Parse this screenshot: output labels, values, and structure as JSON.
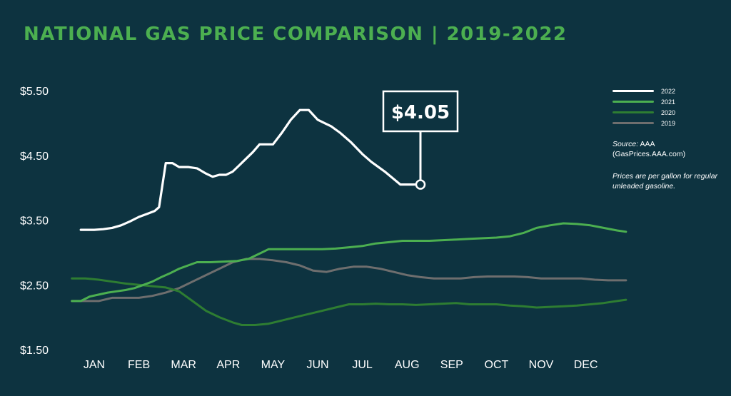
{
  "page": {
    "title": "NATIONAL GAS PRICE COMPARISON  |  2019-2022",
    "background": "#0d3340",
    "title_color": "#4caf50"
  },
  "notes": {
    "source_label": "Source:",
    "source_value": "AAA",
    "source_url": "(GasPrices.AAA.com)",
    "prices_note": "Prices are per gallon for regular unleaded gasoline."
  },
  "chart_data": {
    "type": "line",
    "title": "NATIONAL GAS PRICE COMPARISON  |  2019-2022",
    "categories": [
      "JAN",
      "FEB",
      "MAR",
      "APR",
      "MAY",
      "JUN",
      "JUL",
      "AUG",
      "SEP",
      "OCT",
      "NOV",
      "DEC"
    ],
    "y_ticks": [
      "$1.50",
      "$2.50",
      "$3.50",
      "$4.50",
      "$5.50"
    ],
    "ylim": [
      1.5,
      5.5
    ],
    "grid": false,
    "legend_position": "top-right",
    "annotation": {
      "label": "$4.05",
      "series": "2022",
      "x": 7.3,
      "y": 4.05
    },
    "series": [
      {
        "name": "2022",
        "color": "#ffffff",
        "x": [
          -0.3,
          0,
          0.2,
          0.4,
          0.6,
          0.8,
          1.0,
          1.2,
          1.35,
          1.45,
          1.6,
          1.75,
          1.9,
          2.1,
          2.3,
          2.5,
          2.65,
          2.8,
          2.95,
          3.1,
          3.25,
          3.4,
          3.55,
          3.7,
          3.85,
          4.0,
          4.2,
          4.4,
          4.6,
          4.8,
          5.0,
          5.15,
          5.3,
          5.5,
          5.75,
          6.0,
          6.2,
          6.5,
          6.85,
          7.3
        ],
        "y": [
          3.35,
          3.35,
          3.36,
          3.38,
          3.42,
          3.48,
          3.55,
          3.6,
          3.64,
          3.7,
          4.38,
          4.38,
          4.32,
          4.32,
          4.3,
          4.22,
          4.17,
          4.2,
          4.2,
          4.25,
          4.35,
          4.45,
          4.55,
          4.67,
          4.67,
          4.67,
          4.85,
          5.05,
          5.2,
          5.2,
          5.05,
          5.0,
          4.95,
          4.85,
          4.7,
          4.52,
          4.4,
          4.25,
          4.05,
          4.05
        ]
      },
      {
        "name": "2021",
        "color": "#4caf50",
        "x": [
          -0.5,
          -0.3,
          -0.1,
          0.1,
          0.3,
          0.5,
          0.7,
          0.9,
          1.1,
          1.3,
          1.5,
          1.7,
          1.9,
          2.1,
          2.3,
          2.6,
          2.9,
          3.2,
          3.45,
          3.6,
          3.75,
          3.9,
          4.2,
          4.5,
          4.8,
          5.1,
          5.4,
          5.7,
          6.0,
          6.3,
          6.6,
          6.9,
          7.2,
          7.5,
          7.8,
          8.1,
          8.4,
          8.7,
          9.0,
          9.3,
          9.6,
          9.9,
          10.2,
          10.5,
          10.8,
          11.1,
          11.4,
          11.7,
          11.9
        ],
        "y": [
          2.25,
          2.25,
          2.32,
          2.35,
          2.38,
          2.4,
          2.42,
          2.45,
          2.5,
          2.55,
          2.62,
          2.68,
          2.75,
          2.8,
          2.85,
          2.85,
          2.86,
          2.87,
          2.9,
          2.95,
          3.0,
          3.05,
          3.05,
          3.05,
          3.05,
          3.05,
          3.06,
          3.08,
          3.1,
          3.14,
          3.16,
          3.18,
          3.18,
          3.18,
          3.19,
          3.2,
          3.21,
          3.22,
          3.23,
          3.25,
          3.3,
          3.38,
          3.42,
          3.45,
          3.44,
          3.42,
          3.38,
          3.34,
          3.32
        ]
      },
      {
        "name": "2020",
        "color": "#2e7d32",
        "x": [
          -0.5,
          -0.2,
          0.1,
          0.4,
          0.7,
          1.0,
          1.3,
          1.6,
          1.9,
          2.2,
          2.5,
          2.8,
          3.1,
          3.3,
          3.6,
          3.9,
          4.2,
          4.5,
          4.8,
          5.1,
          5.4,
          5.7,
          6.0,
          6.3,
          6.6,
          6.9,
          7.2,
          7.5,
          7.8,
          8.1,
          8.4,
          8.7,
          9.0,
          9.3,
          9.6,
          9.9,
          10.2,
          10.5,
          10.8,
          11.1,
          11.4,
          11.7,
          11.9
        ],
        "y": [
          2.6,
          2.6,
          2.58,
          2.55,
          2.52,
          2.5,
          2.48,
          2.46,
          2.4,
          2.25,
          2.1,
          2.0,
          1.92,
          1.88,
          1.88,
          1.9,
          1.95,
          2.0,
          2.05,
          2.1,
          2.15,
          2.2,
          2.2,
          2.21,
          2.2,
          2.2,
          2.19,
          2.2,
          2.21,
          2.22,
          2.2,
          2.2,
          2.2,
          2.18,
          2.17,
          2.15,
          2.16,
          2.17,
          2.18,
          2.2,
          2.22,
          2.25,
          2.27
        ]
      },
      {
        "name": "2019",
        "color": "#6e6e6e",
        "x": [
          -0.5,
          -0.2,
          0.1,
          0.4,
          0.7,
          1.0,
          1.3,
          1.6,
          1.9,
          2.2,
          2.5,
          2.8,
          3.1,
          3.4,
          3.7,
          4.0,
          4.3,
          4.6,
          4.9,
          5.2,
          5.5,
          5.8,
          6.1,
          6.4,
          6.7,
          7.0,
          7.3,
          7.6,
          7.9,
          8.2,
          8.5,
          8.8,
          9.1,
          9.4,
          9.7,
          10.0,
          10.3,
          10.6,
          10.9,
          11.2,
          11.5,
          11.9
        ],
        "y": [
          2.25,
          2.25,
          2.25,
          2.3,
          2.3,
          2.3,
          2.33,
          2.38,
          2.45,
          2.55,
          2.65,
          2.75,
          2.85,
          2.9,
          2.9,
          2.88,
          2.85,
          2.8,
          2.72,
          2.7,
          2.75,
          2.78,
          2.78,
          2.75,
          2.7,
          2.65,
          2.62,
          2.6,
          2.6,
          2.6,
          2.62,
          2.63,
          2.63,
          2.63,
          2.62,
          2.6,
          2.6,
          2.6,
          2.6,
          2.58,
          2.57,
          2.57
        ]
      }
    ]
  }
}
